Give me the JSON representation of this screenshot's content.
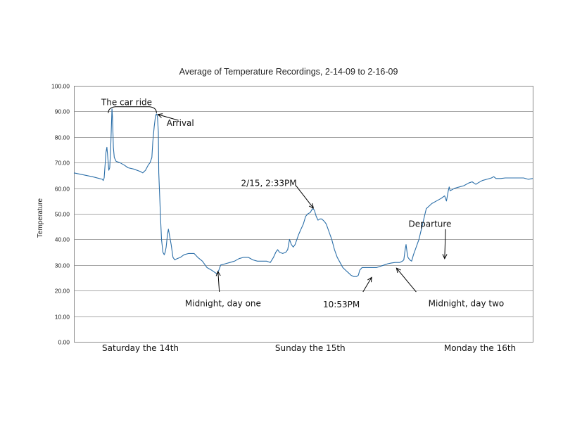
{
  "chart_data": {
    "type": "line",
    "title": "Average of Temperature Recordings, 2-14-09 to 2-16-09",
    "ylabel": "Temperature",
    "xlabel": "",
    "ylim": [
      0,
      100
    ],
    "xlim": [
      0,
      1000
    ],
    "yticks": [
      "0.00",
      "10.00",
      "20.00",
      "30.00",
      "40.00",
      "50.00",
      "60.00",
      "70.00",
      "80.00",
      "90.00",
      "100.00"
    ],
    "xtick_labels": [
      {
        "label": "Saturday the 14th",
        "x": 145
      },
      {
        "label": "Sunday the 15th",
        "x": 515
      },
      {
        "label": "Monday the 16th",
        "x": 885
      }
    ],
    "grid": true,
    "line_color": "#2a6ea8",
    "series": [
      {
        "name": "",
        "points": [
          [
            0,
            66
          ],
          [
            40,
            64.5
          ],
          [
            62,
            63.5
          ],
          [
            64,
            63
          ],
          [
            66,
            64
          ],
          [
            70,
            74
          ],
          [
            72,
            76
          ],
          [
            74,
            72
          ],
          [
            76,
            67
          ],
          [
            78,
            68
          ],
          [
            80,
            75
          ],
          [
            82,
            86
          ],
          [
            83,
            91
          ],
          [
            84,
            88
          ],
          [
            86,
            76
          ],
          [
            88,
            72
          ],
          [
            92,
            70.5
          ],
          [
            100,
            70
          ],
          [
            110,
            69
          ],
          [
            118,
            68
          ],
          [
            130,
            67.5
          ],
          [
            145,
            66.5
          ],
          [
            150,
            66
          ],
          [
            156,
            67
          ],
          [
            162,
            69
          ],
          [
            166,
            70
          ],
          [
            170,
            72
          ],
          [
            172,
            78
          ],
          [
            175,
            84
          ],
          [
            178,
            88.5
          ],
          [
            180,
            89
          ],
          [
            182,
            88
          ],
          [
            184,
            82
          ],
          [
            185,
            66
          ],
          [
            187,
            57
          ],
          [
            189,
            48
          ],
          [
            191,
            40
          ],
          [
            194,
            35
          ],
          [
            197,
            34
          ],
          [
            199,
            35
          ],
          [
            201,
            37
          ],
          [
            204,
            42
          ],
          [
            206,
            44
          ],
          [
            208,
            42
          ],
          [
            212,
            38
          ],
          [
            216,
            33
          ],
          [
            220,
            32
          ],
          [
            225,
            32.5
          ],
          [
            232,
            33
          ],
          [
            240,
            34
          ],
          [
            250,
            34.5
          ],
          [
            262,
            34.5
          ],
          [
            270,
            33
          ],
          [
            280,
            31.5
          ],
          [
            290,
            29
          ],
          [
            300,
            28
          ],
          [
            308,
            27
          ],
          [
            312,
            26.5
          ],
          [
            316,
            28
          ],
          [
            320,
            30
          ],
          [
            330,
            30.5
          ],
          [
            340,
            31
          ],
          [
            350,
            31.5
          ],
          [
            360,
            32.5
          ],
          [
            370,
            33
          ],
          [
            380,
            33
          ],
          [
            390,
            32
          ],
          [
            400,
            31.5
          ],
          [
            410,
            31.5
          ],
          [
            420,
            31.5
          ],
          [
            428,
            31
          ],
          [
            435,
            33
          ],
          [
            440,
            35
          ],
          [
            444,
            36
          ],
          [
            448,
            35
          ],
          [
            455,
            34.5
          ],
          [
            462,
            35
          ],
          [
            466,
            36
          ],
          [
            470,
            40
          ],
          [
            474,
            38
          ],
          [
            478,
            37
          ],
          [
            482,
            38
          ],
          [
            490,
            42
          ],
          [
            495,
            44
          ],
          [
            500,
            46
          ],
          [
            505,
            49
          ],
          [
            510,
            50
          ],
          [
            515,
            50.5
          ],
          [
            520,
            52
          ],
          [
            524,
            51.5
          ],
          [
            528,
            49
          ],
          [
            532,
            47.5
          ],
          [
            536,
            48
          ],
          [
            540,
            48
          ],
          [
            546,
            47
          ],
          [
            550,
            46
          ],
          [
            556,
            43
          ],
          [
            562,
            40
          ],
          [
            568,
            36
          ],
          [
            574,
            33
          ],
          [
            580,
            31
          ],
          [
            586,
            29
          ],
          [
            592,
            28
          ],
          [
            598,
            27
          ],
          [
            604,
            26
          ],
          [
            610,
            25.5
          ],
          [
            616,
            25.5
          ],
          [
            620,
            26
          ],
          [
            623,
            28
          ],
          [
            628,
            29
          ],
          [
            640,
            29
          ],
          [
            650,
            29
          ],
          [
            660,
            29
          ],
          [
            668,
            29.5
          ],
          [
            676,
            30
          ],
          [
            684,
            30.5
          ],
          [
            692,
            30.8
          ],
          [
            700,
            31
          ],
          [
            710,
            31
          ],
          [
            716,
            31.5
          ],
          [
            719,
            32
          ],
          [
            722,
            36
          ],
          [
            724,
            38
          ],
          [
            726,
            35
          ],
          [
            728,
            33
          ],
          [
            732,
            32
          ],
          [
            736,
            31.5
          ],
          [
            740,
            34
          ],
          [
            744,
            36
          ],
          [
            748,
            38
          ],
          [
            752,
            40
          ],
          [
            756,
            43
          ],
          [
            760,
            46
          ],
          [
            764,
            49
          ],
          [
            768,
            52
          ],
          [
            774,
            53
          ],
          [
            780,
            54
          ],
          [
            790,
            55
          ],
          [
            800,
            56
          ],
          [
            808,
            57
          ],
          [
            812,
            55
          ],
          [
            816,
            59
          ],
          [
            818,
            60.5
          ],
          [
            820,
            59
          ],
          [
            830,
            60
          ],
          [
            840,
            60.5
          ],
          [
            850,
            61
          ],
          [
            860,
            62
          ],
          [
            868,
            62.5
          ],
          [
            872,
            62
          ],
          [
            876,
            61.5
          ],
          [
            880,
            62
          ],
          [
            890,
            63
          ],
          [
            900,
            63.5
          ],
          [
            910,
            64
          ],
          [
            915,
            64.5
          ],
          [
            920,
            63.8
          ],
          [
            930,
            63.8
          ],
          [
            940,
            64
          ],
          [
            950,
            64
          ],
          [
            960,
            64
          ],
          [
            970,
            64
          ],
          [
            980,
            64
          ],
          [
            990,
            63.5
          ],
          [
            1000,
            63.8
          ]
        ]
      }
    ],
    "annotations": [
      {
        "text": "The car ride",
        "type": "brace",
        "text_at": [
          115,
          93.5
        ],
        "brace_from": [
          75,
          91
        ],
        "brace_to": [
          180,
          91
        ]
      },
      {
        "text": "Arrival",
        "text_at": [
          232,
          85.5
        ],
        "arrow_from": [
          228,
          86.5
        ],
        "arrow_to": [
          183,
          88.8
        ]
      },
      {
        "text": "2/15, 2:33PM",
        "text_at": [
          425,
          62
        ],
        "arrow_from": [
          484,
          61
        ],
        "arrow_to": [
          522,
          52.2
        ]
      },
      {
        "text": "Departure",
        "text_at": [
          776,
          46
        ],
        "arrow_from": [
          810,
          44
        ],
        "arrow_to": [
          808,
          32.5
        ]
      },
      {
        "text": "Midnight, day one",
        "text_at": [
          325,
          15
        ],
        "arrow_from": [
          317,
          19.5
        ],
        "arrow_to": [
          314,
          27.5
        ]
      },
      {
        "text": "10:53PM",
        "text_at": [
          583,
          14.5
        ],
        "arrow_from": [
          630,
          19.5
        ],
        "arrow_to": [
          649,
          25.2
        ]
      },
      {
        "text": "Midnight, day two",
        "text_at": [
          855,
          15
        ],
        "arrow_from": [
          746,
          19.5
        ],
        "arrow_to": [
          703,
          28.8
        ]
      }
    ]
  }
}
